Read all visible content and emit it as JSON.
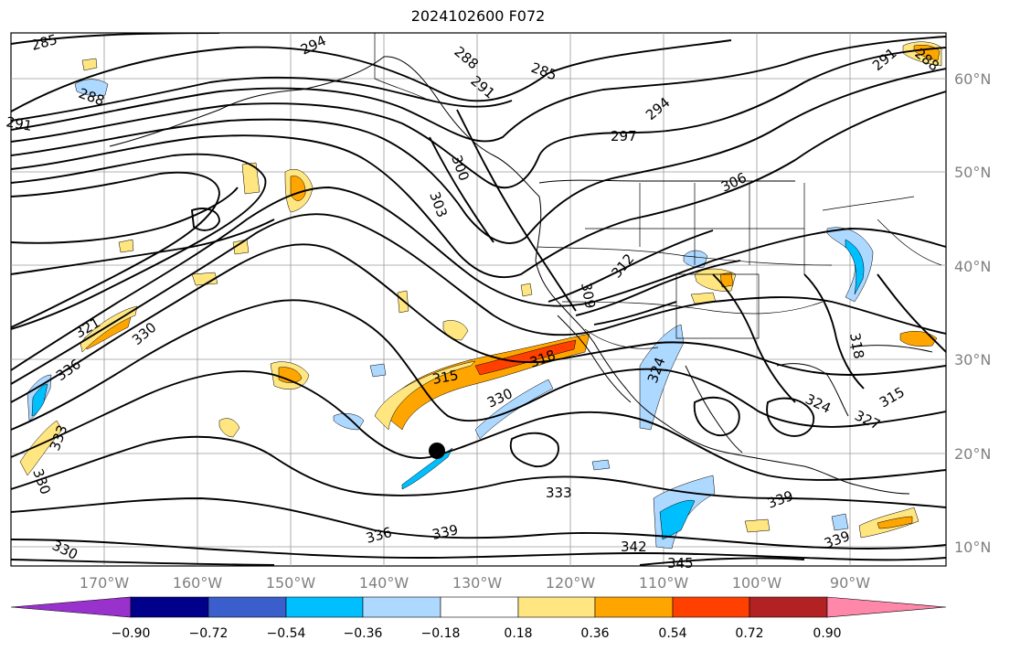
{
  "title": "2024102600 F072",
  "lat_labels": [
    "60°N",
    "50°N",
    "40°N",
    "30°N",
    "20°N",
    "10°N"
  ],
  "lon_labels": [
    "170°W",
    "160°W",
    "150°W",
    "140°W",
    "130°W",
    "120°W",
    "110°W",
    "100°W",
    "90°W"
  ],
  "contour_labels": [
    "285",
    "294",
    "288",
    "285",
    "291",
    "288",
    "291",
    "288",
    "291",
    "294",
    "297",
    "300",
    "303",
    "306",
    "309",
    "312",
    "321",
    "330",
    "336",
    "333",
    "330",
    "315",
    "318",
    "330",
    "324",
    "318",
    "315",
    "324",
    "327",
    "333",
    "336",
    "339",
    "342",
    "345",
    "339",
    "339",
    "330"
  ],
  "colorbar": {
    "labels": [
      "−0.90",
      "−0.72",
      "−0.54",
      "−0.36",
      "−0.18",
      "0.18",
      "0.36",
      "0.54",
      "0.72",
      "0.90"
    ],
    "colors": [
      "#9932cc",
      "#00008b",
      "#3a5fcd",
      "#00bfff",
      "#add8ff",
      "#ffffff",
      "#ffe680",
      "#ffa500",
      "#ff4000",
      "#b22222",
      "#ff88aa"
    ]
  },
  "marker": "black-circle"
}
